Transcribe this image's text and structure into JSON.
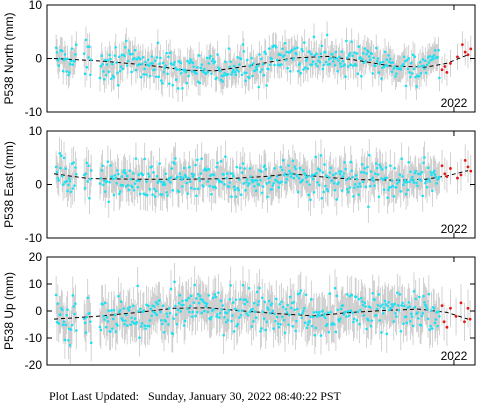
{
  "footer": {
    "label": "Plot Last Updated:",
    "value": "Sunday, January 30, 2022 08:40:22 PST"
  },
  "colors": {
    "data_point": "#1fe0f0",
    "recent_point": "#e41a1a",
    "error_bar": "#c8c8c8",
    "model_line": "#000000",
    "axis": "#000000"
  },
  "chart_data": [
    {
      "type": "scatter",
      "ylabel": "P538 North (mm)",
      "ylim": [
        -10,
        10
      ],
      "yticks": [
        -10,
        0,
        10
      ],
      "xlim": [
        2016.2,
        2022.3
      ],
      "xticks": [
        {
          "value": 2022.0,
          "label": "2022"
        }
      ],
      "grid": false,
      "error_bar_mm": 2.5,
      "trend": [
        [
          2016.3,
          0.0
        ],
        [
          2017.0,
          -0.5
        ],
        [
          2017.6,
          -1.2
        ],
        [
          2018.2,
          -2.2
        ],
        [
          2018.6,
          -2.3
        ],
        [
          2019.1,
          -1.3
        ],
        [
          2019.7,
          0.1
        ],
        [
          2020.2,
          0.4
        ],
        [
          2020.6,
          -0.3
        ],
        [
          2021.1,
          -1.4
        ],
        [
          2021.6,
          -1.6
        ],
        [
          2021.9,
          -0.9
        ],
        [
          2022.2,
          0.7
        ]
      ],
      "scatter_amplitude": 1.6,
      "gaps": [
        [
          2016.62,
          2016.72
        ],
        [
          2016.84,
          2016.95
        ]
      ],
      "recent_range": [
        2021.8,
        2022.25
      ],
      "recent_points": [
        [
          2021.83,
          -2.1
        ],
        [
          2021.87,
          -1.5
        ],
        [
          2021.9,
          -2.6
        ],
        [
          2021.95,
          -0.9
        ],
        [
          2022.05,
          0.3
        ],
        [
          2022.12,
          2.6
        ],
        [
          2022.16,
          1.2
        ],
        [
          2022.2,
          0.7
        ],
        [
          2022.24,
          1.8
        ]
      ]
    },
    {
      "type": "scatter",
      "ylabel": "P538 East (mm)",
      "ylim": [
        -10,
        10
      ],
      "yticks": [
        -10,
        0,
        10
      ],
      "xlim": [
        2016.2,
        2022.3
      ],
      "xticks": [
        {
          "value": 2022.0,
          "label": "2022"
        }
      ],
      "grid": false,
      "error_bar_mm": 3.0,
      "trend": [
        [
          2016.3,
          2.0
        ],
        [
          2016.8,
          1.1
        ],
        [
          2017.5,
          1.0
        ],
        [
          2018.2,
          1.0
        ],
        [
          2018.8,
          1.1
        ],
        [
          2019.3,
          1.5
        ],
        [
          2019.7,
          2.0
        ],
        [
          2020.2,
          1.3
        ],
        [
          2020.7,
          0.9
        ],
        [
          2021.2,
          0.8
        ],
        [
          2021.6,
          1.0
        ],
        [
          2021.9,
          1.6
        ],
        [
          2022.2,
          2.6
        ]
      ],
      "scatter_amplitude": 1.8,
      "gaps": [
        [
          2016.62,
          2016.72
        ],
        [
          2016.84,
          2016.95
        ]
      ],
      "recent_range": [
        2021.8,
        2022.25
      ],
      "recent_points": [
        [
          2021.83,
          3.5
        ],
        [
          2021.87,
          2.0
        ],
        [
          2021.9,
          1.5
        ],
        [
          2021.95,
          3.0
        ],
        [
          2022.05,
          1.2
        ],
        [
          2022.1,
          1.8
        ],
        [
          2022.16,
          4.5
        ],
        [
          2022.2,
          3.3
        ],
        [
          2022.24,
          2.5
        ]
      ]
    },
    {
      "type": "scatter",
      "ylabel": "P538 Up (mm)",
      "ylim": [
        -20,
        20
      ],
      "yticks": [
        -20,
        -10,
        0,
        10,
        20
      ],
      "xlim": [
        2016.2,
        2022.3
      ],
      "xticks": [
        {
          "value": 2022.0,
          "label": "2022"
        }
      ],
      "grid": false,
      "error_bar_mm": 7.0,
      "trend": [
        [
          2016.3,
          -3.0
        ],
        [
          2016.9,
          -2.0
        ],
        [
          2017.5,
          -0.5
        ],
        [
          2018.0,
          1.0
        ],
        [
          2018.5,
          1.2
        ],
        [
          2019.0,
          0.0
        ],
        [
          2019.5,
          -1.0
        ],
        [
          2020.0,
          -1.8
        ],
        [
          2020.5,
          -0.6
        ],
        [
          2021.0,
          0.2
        ],
        [
          2021.5,
          0.7
        ],
        [
          2021.9,
          -0.5
        ],
        [
          2022.2,
          -3.0
        ]
      ],
      "scatter_amplitude": 4.0,
      "gaps": [
        [
          2016.62,
          2016.72
        ],
        [
          2016.84,
          2016.95
        ]
      ],
      "recent_range": [
        2021.8,
        2022.25
      ],
      "recent_points": [
        [
          2021.83,
          2.0
        ],
        [
          2021.86,
          -4.0
        ],
        [
          2021.9,
          -6.0
        ],
        [
          2021.95,
          1.0
        ],
        [
          2022.03,
          -2.0
        ],
        [
          2022.1,
          3.0
        ],
        [
          2022.15,
          -4.0
        ],
        [
          2022.2,
          1.0
        ],
        [
          2022.23,
          -3.0
        ]
      ]
    }
  ]
}
